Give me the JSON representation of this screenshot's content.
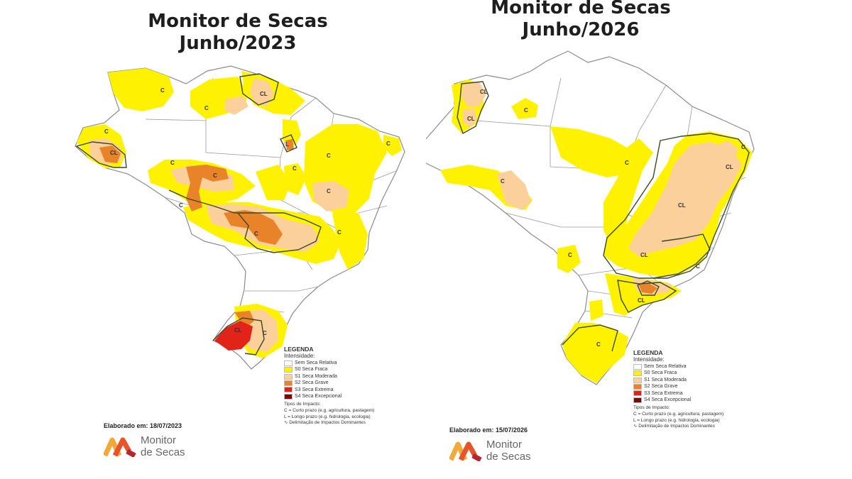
{
  "maps": [
    {
      "title_line1": "Monitor de Secas",
      "title_line2": "Junho/2023",
      "elaborado": "Elaborado em: 18/07/2023"
    },
    {
      "title_line1": "Monitor de Secas",
      "title_line2": "Junho/2026",
      "elaborado": "Elaborado em: 15/07/2026"
    }
  ],
  "legend": {
    "title": "LEGENDA",
    "subtitle": "Intensidade:",
    "levels": [
      {
        "label": "Sem Seca Relativa",
        "color": "#ffffff"
      },
      {
        "label": "S0 Seca Fraca",
        "color": "#fff200"
      },
      {
        "label": "S1 Seca Moderada",
        "color": "#fcd09a"
      },
      {
        "label": "S2 Seca Grave",
        "color": "#e8832a"
      },
      {
        "label": "S3 Seca Extrema",
        "color": "#e2231a"
      },
      {
        "label": "S4 Seca Excepcional",
        "color": "#7a0a0a"
      }
    ],
    "impact_title": "Tipos de Impacto:",
    "impact_c": "C = Curto prazo (e.g. agricultura, pastagem)",
    "impact_l": "L = Longo prazo (e.g. hidrologia, ecologia)",
    "impact_line": "Delimitação de Impactos Dominantes"
  },
  "map_labels": {
    "c": "C",
    "cl": "CL",
    "l": "L"
  },
  "logo": {
    "line1": "Monitor",
    "line2": "de Secas"
  }
}
